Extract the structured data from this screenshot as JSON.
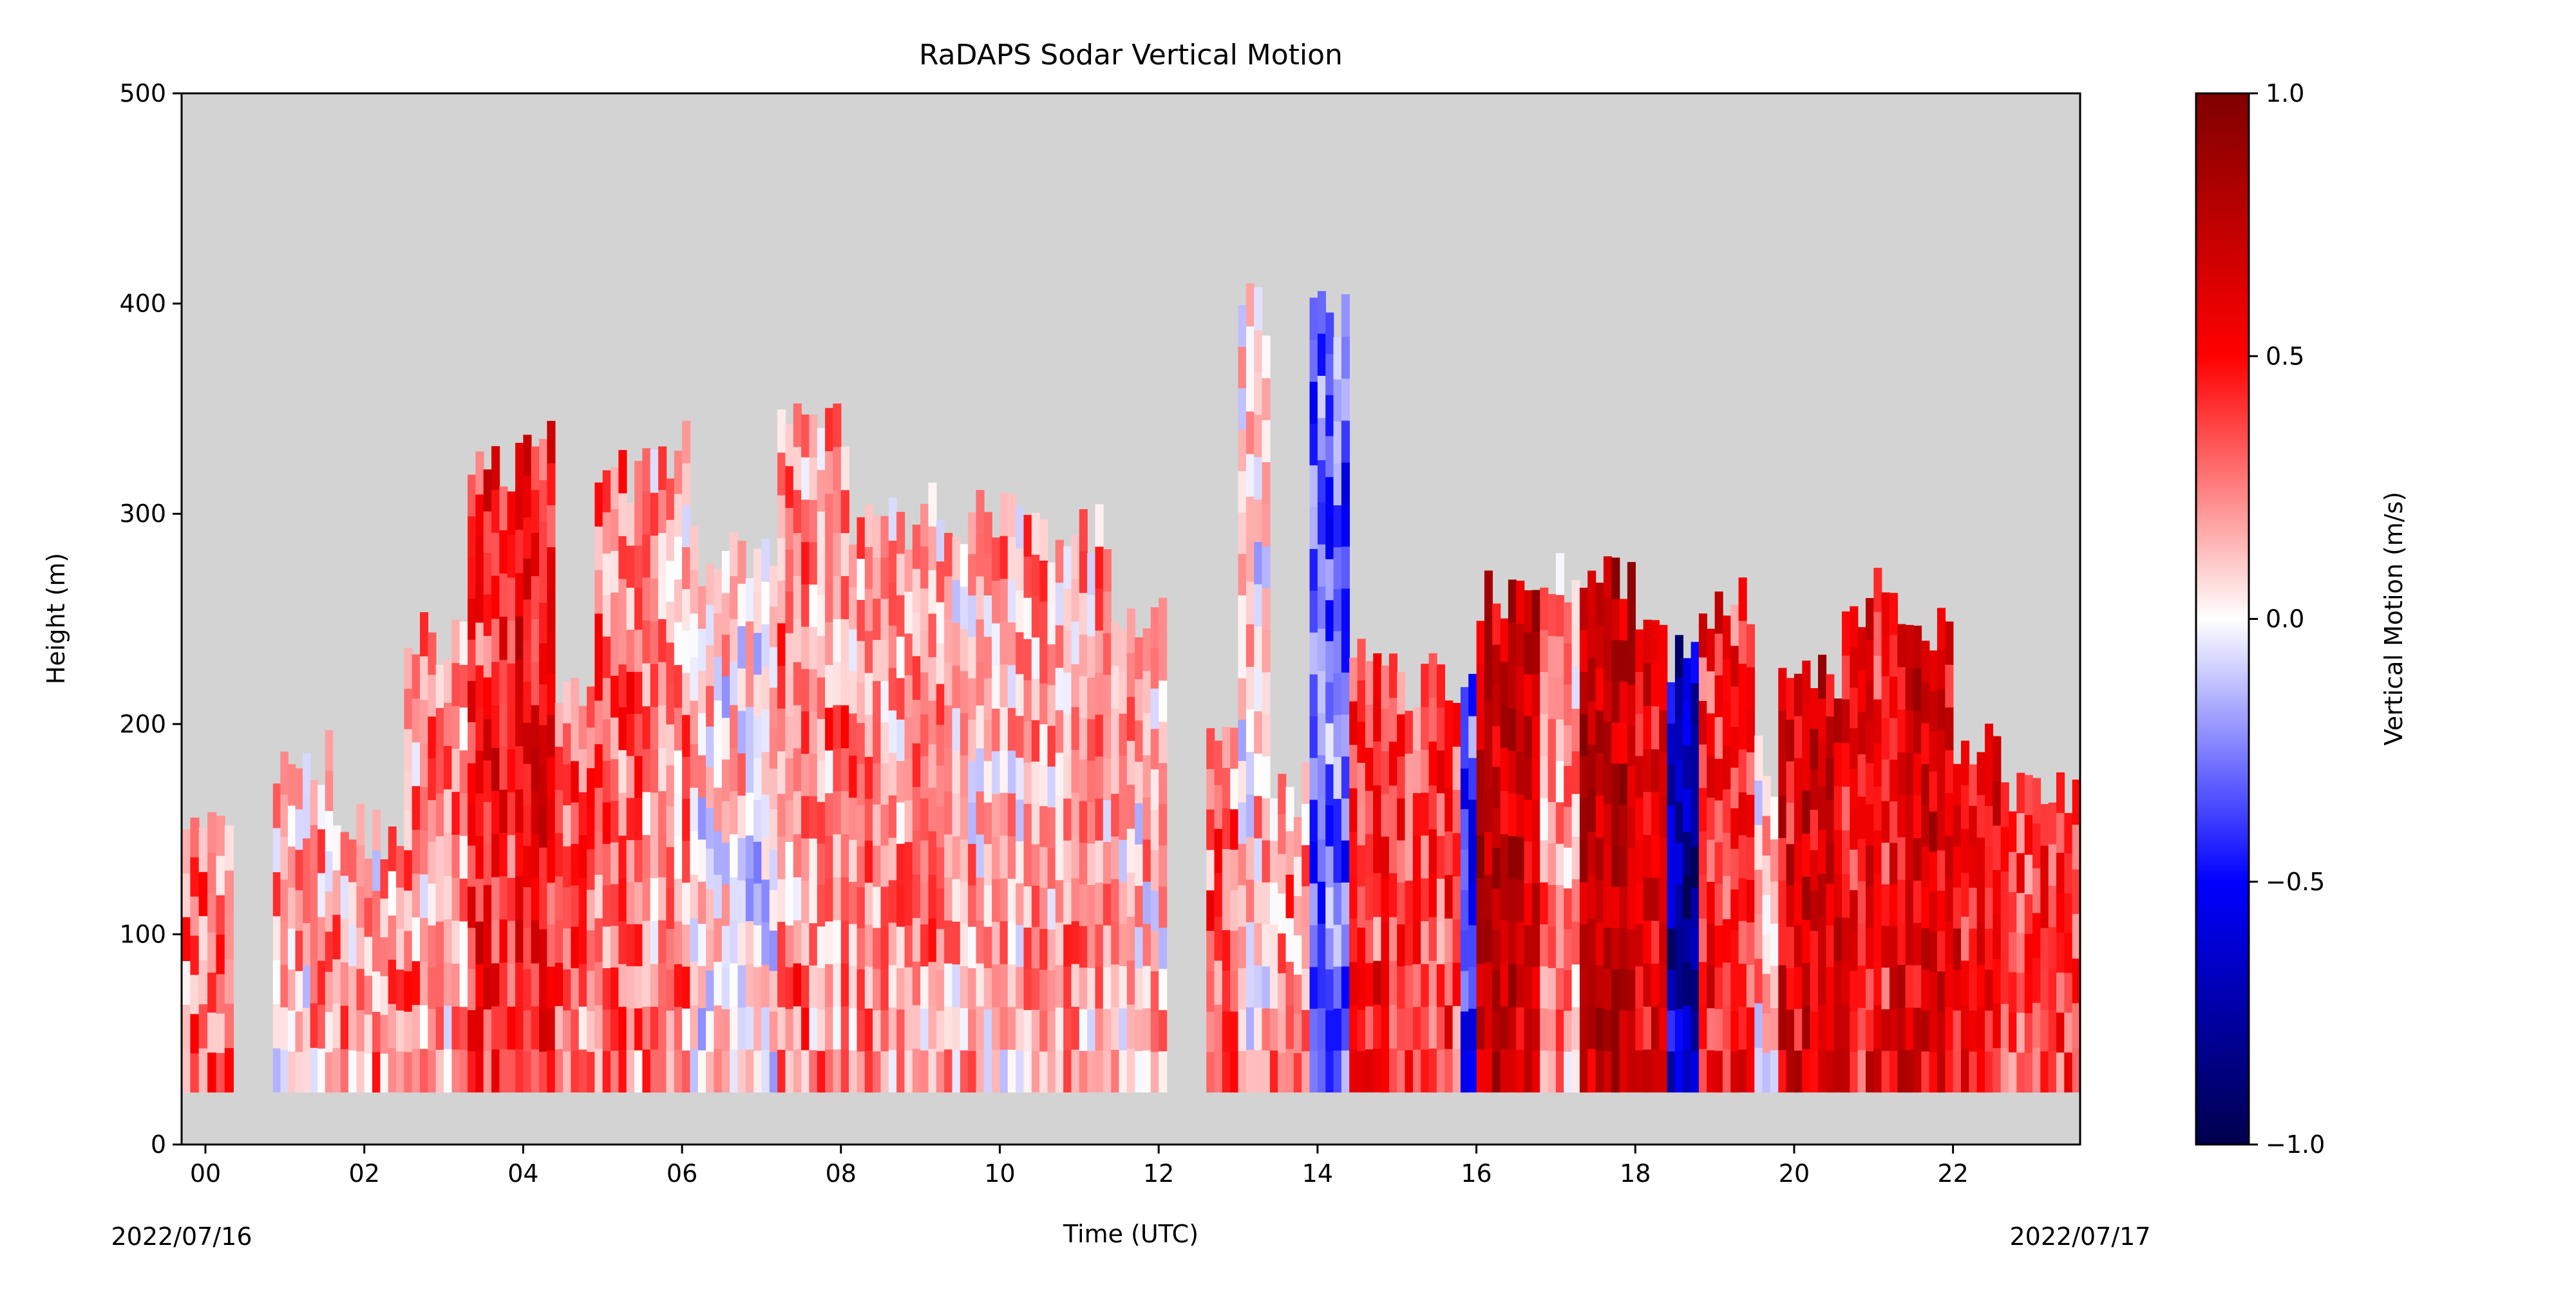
{
  "chart_data": {
    "type": "heatmap",
    "title": "RaDAPS Sodar Vertical Motion",
    "xlabel": "Time (UTC)",
    "ylabel": "Height (m)",
    "x_start_label": "2022/07/16",
    "x_end_label": "2022/07/17",
    "xlim": [
      -0.3,
      23.6
    ],
    "ylim": [
      0,
      500
    ],
    "xticks": [
      {
        "value": 0,
        "label": "00"
      },
      {
        "value": 2,
        "label": "02"
      },
      {
        "value": 4,
        "label": "04"
      },
      {
        "value": 6,
        "label": "06"
      },
      {
        "value": 8,
        "label": "08"
      },
      {
        "value": 10,
        "label": "10"
      },
      {
        "value": 12,
        "label": "12"
      },
      {
        "value": 14,
        "label": "14"
      },
      {
        "value": 16,
        "label": "16"
      },
      {
        "value": 18,
        "label": "18"
      },
      {
        "value": 20,
        "label": "20"
      },
      {
        "value": 22,
        "label": "22"
      }
    ],
    "yticks": [
      {
        "value": 0,
        "label": "0"
      },
      {
        "value": 100,
        "label": "100"
      },
      {
        "value": 200,
        "label": "200"
      },
      {
        "value": 300,
        "label": "300"
      },
      {
        "value": 400,
        "label": "400"
      },
      {
        "value": 500,
        "label": "500"
      }
    ],
    "background_color": "#d3d3d3",
    "min_height": 25,
    "colorbar": {
      "label": "Vertical Motion (m/s)",
      "range": [
        -1.0,
        1.0
      ],
      "colormap": "seismic",
      "ticks": [
        {
          "value": 1.0,
          "label": "1.0"
        },
        {
          "value": 0.5,
          "label": "0.5"
        },
        {
          "value": 0.0,
          "label": "0.0"
        },
        {
          "value": -0.5,
          "label": "−0.5"
        },
        {
          "value": -1.0,
          "label": "−1.0"
        }
      ]
    },
    "columns": [
      {
        "t0": -0.3,
        "t1": 0.35,
        "top": 165,
        "mean": 0.32
      },
      {
        "t0": 0.35,
        "t1": 0.85,
        "top": null,
        "mean": 0
      },
      {
        "t0": 0.85,
        "t1": 1.6,
        "top": 185,
        "mean": 0.14
      },
      {
        "t0": 1.6,
        "t1": 2.5,
        "top": 150,
        "mean": 0.17
      },
      {
        "t0": 2.5,
        "t1": 3.3,
        "top": 240,
        "mean": 0.2
      },
      {
        "t0": 3.3,
        "t1": 3.9,
        "top": 320,
        "mean": 0.45
      },
      {
        "t0": 3.9,
        "t1": 4.4,
        "top": 330,
        "mean": 0.5
      },
      {
        "t0": 4.4,
        "t1": 4.9,
        "top": 220,
        "mean": 0.3
      },
      {
        "t0": 4.9,
        "t1": 5.5,
        "top": 320,
        "mean": 0.3
      },
      {
        "t0": 5.5,
        "t1": 6.1,
        "top": 330,
        "mean": 0.18
      },
      {
        "t0": 6.1,
        "t1": 7.2,
        "top": 280,
        "mean": 0.04
      },
      {
        "t0": 7.2,
        "t1": 8.1,
        "top": 340,
        "mean": 0.24
      },
      {
        "t0": 8.1,
        "t1": 9.1,
        "top": 295,
        "mean": 0.2
      },
      {
        "t0": 9.1,
        "t1": 10.3,
        "top": 300,
        "mean": 0.16
      },
      {
        "t0": 10.3,
        "t1": 11.4,
        "top": 290,
        "mean": 0.2
      },
      {
        "t0": 11.4,
        "t1": 12.1,
        "top": 250,
        "mean": 0.12
      },
      {
        "t0": 12.1,
        "t1": 12.6,
        "top": null,
        "mean": 0
      },
      {
        "t0": 12.6,
        "t1": 13.0,
        "top": 200,
        "mean": 0.32
      },
      {
        "t0": 13.0,
        "t1": 13.4,
        "top": 395,
        "mean": 0.05
      },
      {
        "t0": 13.4,
        "t1": 13.9,
        "top": 170,
        "mean": 0.22
      },
      {
        "t0": 13.9,
        "t1": 14.4,
        "top": 395,
        "mean": -0.32
      },
      {
        "t0": 14.4,
        "t1": 15.0,
        "top": 230,
        "mean": 0.42
      },
      {
        "t0": 15.0,
        "t1": 15.8,
        "top": 220,
        "mean": 0.38
      },
      {
        "t0": 15.8,
        "t1": 16.0,
        "top": 220,
        "mean": -0.4
      },
      {
        "t0": 16.0,
        "t1": 16.8,
        "top": 260,
        "mean": 0.7
      },
      {
        "t0": 16.8,
        "t1": 17.3,
        "top": 270,
        "mean": 0.2
      },
      {
        "t0": 17.3,
        "t1": 18.0,
        "top": 265,
        "mean": 0.75
      },
      {
        "t0": 18.0,
        "t1": 18.4,
        "top": 260,
        "mean": 0.55
      },
      {
        "t0": 18.4,
        "t1": 18.8,
        "top": 230,
        "mean": -0.7
      },
      {
        "t0": 18.8,
        "t1": 19.5,
        "top": 255,
        "mean": 0.45
      },
      {
        "t0": 19.5,
        "t1": 19.8,
        "top": 180,
        "mean": 0.1
      },
      {
        "t0": 19.8,
        "t1": 20.6,
        "top": 220,
        "mean": 0.6
      },
      {
        "t0": 20.6,
        "t1": 21.3,
        "top": 260,
        "mean": 0.5
      },
      {
        "t0": 21.3,
        "t1": 22.0,
        "top": 250,
        "mean": 0.6
      },
      {
        "t0": 22.0,
        "t1": 22.6,
        "top": 190,
        "mean": 0.5
      },
      {
        "t0": 22.6,
        "t1": 23.6,
        "top": 170,
        "mean": 0.35
      }
    ]
  }
}
